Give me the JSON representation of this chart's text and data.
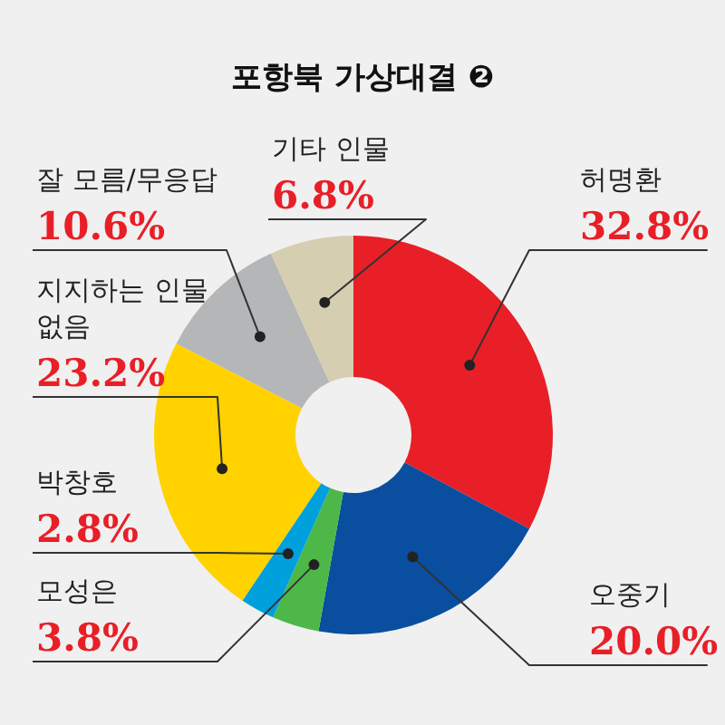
{
  "chart_data": {
    "type": "donut",
    "title": "포항북 가상대결 ❷",
    "categories": [
      "허명환",
      "오중기",
      "모성은",
      "박창호",
      "지지하는 인물 없음",
      "잘 모름/무응답",
      "기타 인물"
    ],
    "values": [
      32.8,
      20.0,
      3.8,
      2.8,
      23.2,
      10.6,
      6.8
    ],
    "colors": [
      "#e81f27",
      "#0a4ea0",
      "#4db848",
      "#00a0dc",
      "#ffd200",
      "#b5b6b8",
      "#d5ceb0"
    ],
    "value_labels": [
      "32.8%",
      "20.0%",
      "3.8%",
      "2.8%",
      "23.2%",
      "10.6%",
      "6.8%"
    ],
    "legend": false
  }
}
